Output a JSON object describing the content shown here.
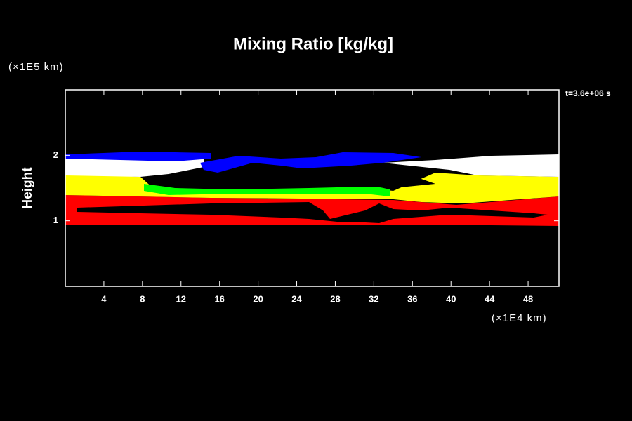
{
  "chart_data": {
    "type": "contour",
    "title": "Mixing Ratio [kg/kg]",
    "y_label": "Height",
    "y_unit": "(×1E5 km)",
    "x_unit": "(×1E4 km)",
    "annotation": "t=3.6e+06 s",
    "xlim": [
      0,
      51.2
    ],
    "xticks": [
      4,
      8,
      12,
      16,
      20,
      24,
      28,
      32,
      36,
      40,
      44,
      48
    ],
    "ylim": [
      0,
      3
    ],
    "yticks": [
      1,
      2
    ]
  }
}
